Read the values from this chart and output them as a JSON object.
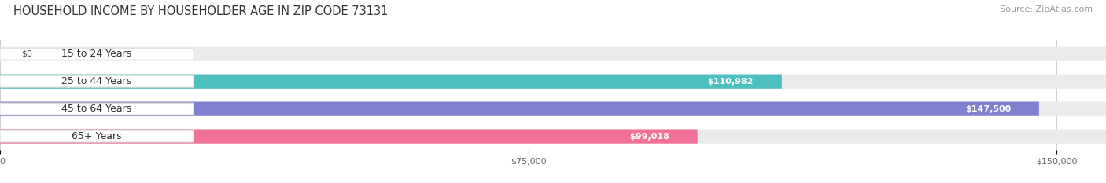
{
  "title": "HOUSEHOLD INCOME BY HOUSEHOLDER AGE IN ZIP CODE 73131",
  "source": "Source: ZipAtlas.com",
  "categories": [
    "15 to 24 Years",
    "25 to 44 Years",
    "45 to 64 Years",
    "65+ Years"
  ],
  "values": [
    0,
    110982,
    147500,
    99018
  ],
  "bar_colors": [
    "#c9a8d4",
    "#4dbfbf",
    "#8080d0",
    "#f07098"
  ],
  "bar_bg_color": "#ebebeb",
  "label_texts": [
    "$0",
    "$110,982",
    "$147,500",
    "$99,018"
  ],
  "x_ticks": [
    0,
    75000,
    150000
  ],
  "x_tick_labels": [
    "$0",
    "$75,000",
    "$150,000"
  ],
  "xlim_max": 157000,
  "fig_width": 14.06,
  "fig_height": 2.33,
  "title_fontsize": 10.5,
  "source_fontsize": 8,
  "bar_label_fontsize": 8,
  "category_fontsize": 9,
  "tick_fontsize": 8,
  "bar_height": 0.52,
  "background_color": "#ffffff",
  "grid_color": "#cccccc",
  "pill_label_bg": "#ffffff",
  "pill_label_border": "#dddddd",
  "value_label_color_inside": "#ffffff",
  "value_label_color_outside": "#555555"
}
